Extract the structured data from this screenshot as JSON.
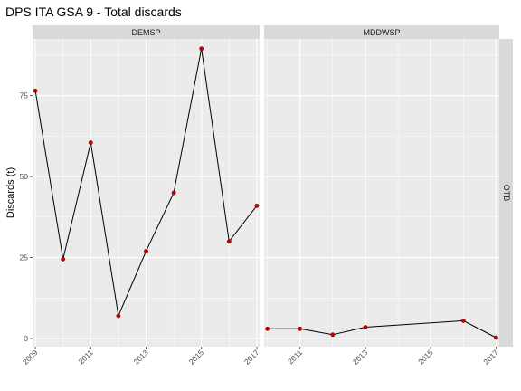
{
  "chart_data": {
    "type": "line",
    "title": "DPS ITA GSA 9 - Total discards",
    "ylabel": "Discards (t)",
    "xlabel": "",
    "row_strip": "OTB",
    "ylim": [
      -2.5,
      92.5
    ],
    "y_ticks": [
      0,
      25,
      50,
      75
    ],
    "x_ticks": [
      2009,
      2011,
      2013,
      2015,
      2017
    ],
    "grid": true,
    "colors": {
      "panel_bg": "#ebebeb",
      "grid_major": "#ffffff",
      "line": "#000000",
      "point": "#cc0000",
      "strip_bg": "#d9d9d9"
    },
    "panels": [
      {
        "strip": "DEMSP",
        "xlim": [
          2008.9,
          2017.1
        ],
        "x": [
          2009,
          2010,
          2011,
          2012,
          2013,
          2014,
          2015,
          2016,
          2017
        ],
        "y": [
          76.5,
          24.5,
          60.5,
          7,
          27,
          45,
          89.5,
          30,
          41
        ]
      },
      {
        "strip": "MDDWSP",
        "xlim": [
          2009.9,
          2017.1
        ],
        "x": [
          2010,
          2011,
          2012,
          2013,
          2016,
          2017
        ],
        "y": [
          3,
          3,
          1.2,
          3.5,
          5.5,
          0.3
        ]
      }
    ]
  }
}
